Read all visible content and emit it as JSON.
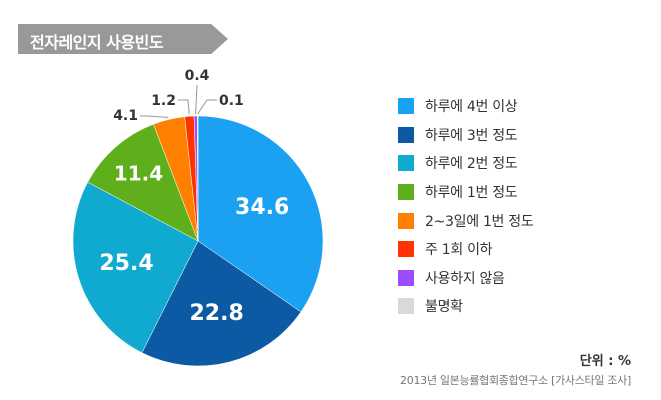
{
  "title": "전자레인지 사용빈도",
  "unit_note": "단위 : %",
  "source_note": "2013년 일본능률협회종합연구소 [가사스타일 조사]",
  "chart_data": {
    "type": "pie",
    "title": "전자레인지 사용빈도",
    "unit": "%",
    "slices": [
      {
        "label": "하루에 4번 이상",
        "value": 34.6,
        "color": "#1ba1f2"
      },
      {
        "label": "하루에 3번 정도",
        "value": 22.8,
        "color": "#0b5aa3"
      },
      {
        "label": "하루에 2번 정도",
        "value": 25.4,
        "color": "#10a9cf"
      },
      {
        "label": "하루에 1번 정도",
        "value": 11.4,
        "color": "#5fae1b"
      },
      {
        "label": "2~3일에 1번 정도",
        "value": 4.1,
        "color": "#ff7f00"
      },
      {
        "label": "주 1회 이하",
        "value": 1.2,
        "color": "#ff3300"
      },
      {
        "label": "사용하지 않음",
        "value": 0.4,
        "color": "#9b4dff"
      },
      {
        "label": "불명확",
        "value": 0.1,
        "color": "#d9d9d9"
      }
    ],
    "value_labels": [
      "34.6",
      "22.8",
      "25.4",
      "11.4",
      "4.1",
      "1.2",
      "0.4",
      "0.1"
    ],
    "legend_position": "right"
  }
}
